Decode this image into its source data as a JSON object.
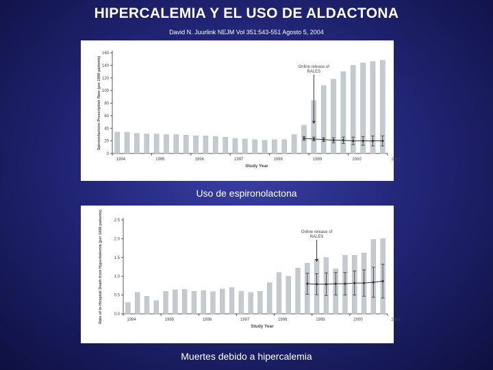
{
  "slide": {
    "title": "HIPERCALEMIA Y EL USO DE ALDACTONA",
    "citation": "David N. Juurlink NEJM Vol 351:543-551 Agosto 5, 2004",
    "caption_top": "Uso de espironolactona",
    "caption_bottom": "Muertes debido a hipercalemia"
  },
  "colors": {
    "bar": "#c3cbcf",
    "axis": "#555555",
    "text": "#444444",
    "marker": "#333333"
  },
  "chart_data": [
    {
      "type": "bar",
      "ylabel": "Spironolactone Prescription Rate (per 1000 patients)",
      "xlabel": "Study Year",
      "ylim": [
        0,
        160
      ],
      "yticks": [
        0,
        20,
        40,
        60,
        80,
        100,
        120,
        140,
        160
      ],
      "xtick_labels": [
        "1994",
        "1995",
        "1996",
        "1997",
        "1998",
        "1999",
        "2000",
        "2001"
      ],
      "annotation": "Online release of RALES",
      "annotation_after_quarter": 21,
      "series": [
        {
          "values": [
            34,
            34,
            32,
            31,
            31,
            30,
            30,
            29,
            28,
            28,
            27,
            26,
            24,
            23,
            22,
            21,
            22,
            22,
            30,
            45,
            84,
            108,
            118,
            130,
            140,
            144,
            146,
            148
          ]
        },
        {
          "values": [
            null,
            null,
            null,
            null,
            null,
            null,
            null,
            null,
            null,
            null,
            null,
            null,
            null,
            null,
            null,
            null,
            null,
            null,
            null,
            24,
            23,
            22,
            21,
            21,
            20,
            20,
            20,
            20
          ],
          "errors": [
            null,
            null,
            null,
            null,
            null,
            null,
            null,
            null,
            null,
            null,
            null,
            null,
            null,
            null,
            null,
            null,
            null,
            null,
            null,
            3,
            3,
            3,
            4,
            5,
            6,
            7,
            8,
            8
          ]
        }
      ]
    },
    {
      "type": "bar",
      "ylabel": "Rate of In-Hospital Death from Hyperkalemia (per 1000 patients)",
      "xlabel": "Study Year",
      "ylim": [
        0,
        2.5
      ],
      "yticks": [
        "0.0",
        "0.5",
        "1.0",
        "1.5",
        "2.0",
        "2.5"
      ],
      "xtick_labels": [
        "1994",
        "1995",
        "1996",
        "1997",
        "1998",
        "1999",
        "2000",
        "2001"
      ],
      "annotation": "Online release of RALES",
      "annotation_after_quarter": 21,
      "series": [
        {
          "values": [
            0.3,
            0.57,
            0.47,
            0.35,
            0.6,
            0.64,
            0.65,
            0.6,
            0.62,
            0.59,
            0.66,
            0.7,
            0.6,
            0.57,
            0.6,
            0.83,
            1.1,
            1.0,
            1.22,
            1.35,
            1.45,
            1.5,
            1.2,
            1.56,
            1.56,
            1.62,
            1.98,
            2.0
          ]
        },
        {
          "values": [
            null,
            null,
            null,
            null,
            null,
            null,
            null,
            null,
            null,
            null,
            null,
            null,
            null,
            null,
            null,
            null,
            null,
            null,
            null,
            0.8,
            0.79,
            0.79,
            0.8,
            0.8,
            0.82,
            0.82,
            0.84,
            0.87
          ],
          "errors": [
            null,
            null,
            null,
            null,
            null,
            null,
            null,
            null,
            null,
            null,
            null,
            null,
            null,
            null,
            null,
            null,
            null,
            null,
            null,
            0.28,
            0.28,
            0.3,
            0.3,
            0.3,
            0.32,
            0.35,
            0.4,
            0.45
          ]
        }
      ]
    }
  ]
}
